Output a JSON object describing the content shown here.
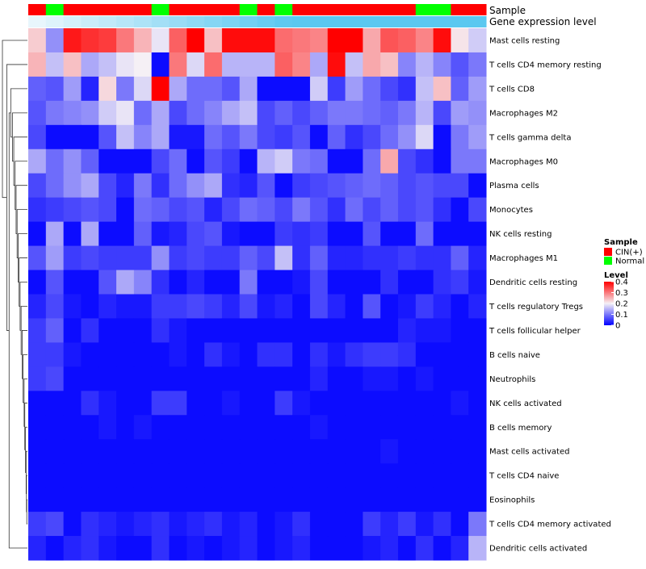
{
  "chart_data": {
    "type": "heatmap",
    "title": "",
    "annotations": {
      "sample_label": "Sample",
      "expression_label": "Gene expression level",
      "sample_groups": [
        "CIN(+)",
        "Normal",
        "CIN(+)",
        "CIN(+)",
        "CIN(+)",
        "CIN(+)",
        "CIN(+)",
        "Normal",
        "CIN(+)",
        "CIN(+)",
        "CIN(+)",
        "CIN(+)",
        "Normal",
        "CIN(+)",
        "Normal",
        "CIN(+)",
        "CIN(+)",
        "CIN(+)",
        "CIN(+)",
        "CIN(+)",
        "CIN(+)",
        "CIN(+)",
        "Normal",
        "Normal",
        "CIN(+)",
        "CIN(+)"
      ],
      "expression_color": "#5bc8f0",
      "expression_gradient_start": "#e8f6fc"
    },
    "sample_colors": {
      "CIN(+)": "#ff0000",
      "Normal": "#00ff00"
    },
    "rows": [
      "Mast cells resting",
      "T cells CD4 memory resting",
      "T cells CD8",
      "Macrophages M2",
      "T cells gamma delta",
      "Macrophages M0",
      "Plasma cells",
      "Monocytes",
      "NK cells resting",
      "Macrophages M1",
      "Dendritic cells resting",
      "T cells regulatory  Tregs",
      "T cells follicular helper",
      "B cells naive",
      "Neutrophils",
      "NK cells activated",
      "B cells memory",
      "Mast cells activated",
      "T cells CD4 naive",
      "Eosinophils",
      "T cells CD4 memory activated",
      "Dendritic cells activated"
    ],
    "values": [
      [
        0.23,
        0.12,
        0.38,
        0.36,
        0.35,
        0.3,
        0.25,
        0.19,
        0.32,
        0.4,
        0.24,
        0.39,
        0.39,
        0.39,
        0.31,
        0.3,
        0.29,
        0.4,
        0.4,
        0.26,
        0.33,
        0.32,
        0.29,
        0.39,
        0.21,
        0.17
      ],
      [
        0.25,
        0.16,
        0.24,
        0.14,
        0.16,
        0.19,
        0.2,
        0.01,
        0.3,
        0.18,
        0.31,
        0.15,
        0.15,
        0.15,
        0.32,
        0.29,
        0.14,
        0.39,
        0.16,
        0.26,
        0.24,
        0.11,
        0.15,
        0.11,
        0.07,
        0.1
      ],
      [
        0.08,
        0.07,
        0.13,
        0.03,
        0.22,
        0.1,
        0.18,
        0.4,
        0.14,
        0.09,
        0.09,
        0.07,
        0.14,
        0.01,
        0.01,
        0.01,
        0.17,
        0.05,
        0.13,
        0.09,
        0.06,
        0.04,
        0.16,
        0.24,
        0.08,
        0.13
      ],
      [
        0.07,
        0.1,
        0.11,
        0.12,
        0.17,
        0.19,
        0.09,
        0.14,
        0.06,
        0.09,
        0.11,
        0.14,
        0.16,
        0.06,
        0.08,
        0.06,
        0.08,
        0.1,
        0.1,
        0.09,
        0.08,
        0.1,
        0.15,
        0.06,
        0.13,
        0.12
      ],
      [
        0.06,
        0.01,
        0.01,
        0.01,
        0.07,
        0.16,
        0.11,
        0.14,
        0.02,
        0.02,
        0.09,
        0.07,
        0.1,
        0.06,
        0.05,
        0.07,
        0.01,
        0.08,
        0.04,
        0.06,
        0.09,
        0.12,
        0.18,
        0.01,
        0.1,
        0.13
      ],
      [
        0.14,
        0.09,
        0.12,
        0.08,
        0.01,
        0.01,
        0.01,
        0.06,
        0.09,
        0.01,
        0.07,
        0.05,
        0.01,
        0.15,
        0.17,
        0.1,
        0.09,
        0.01,
        0.01,
        0.09,
        0.26,
        0.06,
        0.04,
        0.01,
        0.1,
        0.1
      ],
      [
        0.06,
        0.09,
        0.12,
        0.14,
        0.06,
        0.03,
        0.1,
        0.04,
        0.09,
        0.12,
        0.14,
        0.04,
        0.03,
        0.07,
        0.01,
        0.05,
        0.06,
        0.07,
        0.08,
        0.09,
        0.08,
        0.06,
        0.07,
        0.06,
        0.06,
        0.01
      ],
      [
        0.04,
        0.05,
        0.06,
        0.07,
        0.06,
        0.01,
        0.09,
        0.08,
        0.06,
        0.07,
        0.03,
        0.06,
        0.09,
        0.08,
        0.06,
        0.1,
        0.07,
        0.04,
        0.09,
        0.06,
        0.08,
        0.06,
        0.07,
        0.04,
        0.01,
        0.06
      ],
      [
        0.01,
        0.14,
        0.01,
        0.14,
        0.01,
        0.01,
        0.08,
        0.02,
        0.03,
        0.06,
        0.07,
        0.02,
        0.01,
        0.01,
        0.05,
        0.04,
        0.05,
        0.01,
        0.01,
        0.07,
        0.01,
        0.01,
        0.09,
        0.01,
        0.01,
        0.01
      ],
      [
        0.07,
        0.13,
        0.05,
        0.06,
        0.05,
        0.05,
        0.05,
        0.12,
        0.05,
        0.06,
        0.05,
        0.05,
        0.08,
        0.06,
        0.16,
        0.04,
        0.08,
        0.03,
        0.03,
        0.04,
        0.04,
        0.05,
        0.04,
        0.04,
        0.08,
        0.03
      ],
      [
        0.01,
        0.07,
        0.01,
        0.01,
        0.07,
        0.14,
        0.11,
        0.04,
        0.01,
        0.03,
        0.01,
        0.01,
        0.1,
        0.01,
        0.01,
        0.02,
        0.06,
        0.01,
        0.01,
        0.01,
        0.04,
        0.01,
        0.01,
        0.04,
        0.05,
        0.02
      ],
      [
        0.03,
        0.06,
        0.02,
        0.01,
        0.03,
        0.02,
        0.02,
        0.05,
        0.05,
        0.06,
        0.05,
        0.03,
        0.06,
        0.02,
        0.03,
        0.01,
        0.06,
        0.03,
        0.01,
        0.07,
        0.01,
        0.02,
        0.05,
        0.03,
        0.01,
        0.03
      ],
      [
        0.05,
        0.08,
        0.01,
        0.04,
        0.01,
        0.01,
        0.01,
        0.04,
        0.02,
        0.01,
        0.01,
        0.01,
        0.01,
        0.01,
        0.01,
        0.01,
        0.01,
        0.01,
        0.01,
        0.01,
        0.01,
        0.03,
        0.02,
        0.02,
        0.01,
        0.01
      ],
      [
        0.05,
        0.05,
        0.02,
        0.01,
        0.01,
        0.01,
        0.01,
        0.01,
        0.02,
        0.01,
        0.04,
        0.02,
        0.01,
        0.04,
        0.04,
        0.01,
        0.04,
        0.02,
        0.04,
        0.05,
        0.05,
        0.04,
        0.01,
        0.01,
        0.01,
        0.01
      ],
      [
        0.05,
        0.06,
        0.01,
        0.01,
        0.01,
        0.01,
        0.01,
        0.01,
        0.01,
        0.01,
        0.01,
        0.01,
        0.01,
        0.01,
        0.01,
        0.01,
        0.03,
        0.01,
        0.01,
        0.02,
        0.02,
        0.01,
        0.02,
        0.01,
        0.01,
        0.01
      ],
      [
        0.01,
        0.01,
        0.01,
        0.04,
        0.02,
        0.01,
        0.01,
        0.05,
        0.05,
        0.01,
        0.01,
        0.02,
        0.01,
        0.01,
        0.05,
        0.02,
        0.01,
        0.01,
        0.01,
        0.01,
        0.01,
        0.01,
        0.01,
        0.01,
        0.02,
        0.01
      ],
      [
        0.01,
        0.01,
        0.01,
        0.01,
        0.02,
        0.01,
        0.02,
        0.01,
        0.01,
        0.01,
        0.01,
        0.01,
        0.01,
        0.01,
        0.01,
        0.01,
        0.02,
        0.01,
        0.01,
        0.01,
        0.01,
        0.01,
        0.01,
        0.01,
        0.01,
        0.01
      ],
      [
        0.01,
        0.01,
        0.01,
        0.01,
        0.01,
        0.01,
        0.01,
        0.01,
        0.01,
        0.01,
        0.01,
        0.01,
        0.01,
        0.01,
        0.01,
        0.01,
        0.01,
        0.01,
        0.01,
        0.01,
        0.02,
        0.01,
        0.01,
        0.01,
        0.01,
        0.01
      ],
      [
        0.01,
        0.01,
        0.01,
        0.01,
        0.01,
        0.01,
        0.01,
        0.01,
        0.01,
        0.01,
        0.01,
        0.01,
        0.01,
        0.01,
        0.01,
        0.01,
        0.01,
        0.01,
        0.01,
        0.01,
        0.01,
        0.01,
        0.01,
        0.01,
        0.01,
        0.01
      ],
      [
        0.01,
        0.01,
        0.01,
        0.01,
        0.01,
        0.01,
        0.01,
        0.01,
        0.01,
        0.01,
        0.01,
        0.01,
        0.01,
        0.01,
        0.01,
        0.01,
        0.01,
        0.01,
        0.01,
        0.01,
        0.01,
        0.01,
        0.01,
        0.01,
        0.01,
        0.01
      ],
      [
        0.05,
        0.06,
        0.01,
        0.04,
        0.03,
        0.02,
        0.03,
        0.04,
        0.02,
        0.03,
        0.04,
        0.02,
        0.03,
        0.01,
        0.02,
        0.04,
        0.01,
        0.01,
        0.01,
        0.05,
        0.03,
        0.05,
        0.02,
        0.04,
        0.01,
        0.1
      ],
      [
        0.03,
        0.01,
        0.03,
        0.04,
        0.02,
        0.01,
        0.01,
        0.04,
        0.01,
        0.02,
        0.01,
        0.02,
        0.03,
        0.01,
        0.02,
        0.03,
        0.01,
        0.01,
        0.01,
        0.02,
        0.03,
        0.01,
        0.04,
        0.01,
        0.03,
        0.15
      ]
    ],
    "color_scale": {
      "min": 0,
      "mid": 0.2,
      "max": 0.4,
      "low_color": "#0000ff",
      "mid_color": "#f5f0f5",
      "high_color": "#ff0000"
    },
    "legend": {
      "sample_title": "Sample",
      "sample_entries": [
        {
          "label": "CIN(+)",
          "color": "#ff0000"
        },
        {
          "label": "Normal",
          "color": "#00ff00"
        }
      ],
      "level_title": "Level",
      "level_ticks": [
        {
          "value": 0.4,
          "label": "0.4"
        },
        {
          "value": 0.3,
          "label": "0.3"
        },
        {
          "value": 0.2,
          "label": "0.2"
        },
        {
          "value": 0.1,
          "label": "0.1"
        },
        {
          "value": 0.0,
          "label": "0"
        }
      ]
    },
    "dendrogram": {
      "orientation": "left",
      "merges": [
        [
          -20,
          -21
        ],
        [
          -19,
          1
        ],
        [
          -18,
          2
        ],
        [
          -17,
          3
        ],
        [
          -16,
          4
        ],
        [
          -15,
          5
        ],
        [
          -14,
          6
        ],
        [
          -13,
          7
        ],
        [
          -12,
          8
        ],
        [
          -11,
          9
        ],
        [
          -10,
          10
        ],
        [
          -9,
          11
        ],
        [
          -8,
          12
        ],
        [
          -7,
          13
        ],
        [
          -6,
          14
        ],
        [
          -5,
          15
        ],
        [
          -4,
          16
        ],
        [
          -3,
          17
        ],
        [
          -22,
          18
        ],
        [
          -2,
          19
        ],
        [
          -1,
          20
        ]
      ],
      "heights": [
        0.02,
        0.03,
        0.04,
        0.06,
        0.08,
        0.1,
        0.13,
        0.16,
        0.19,
        0.22,
        0.25,
        0.28,
        0.31,
        0.34,
        0.37,
        0.41,
        0.45,
        0.5,
        0.55,
        0.62,
        0.75
      ]
    }
  }
}
